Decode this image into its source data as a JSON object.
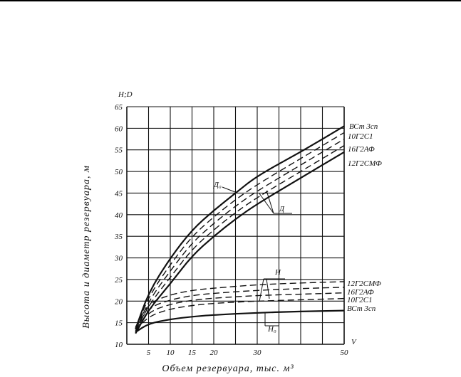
{
  "chart_data": {
    "type": "line",
    "ylabel_top": "H;D",
    "xlabel_end": "V",
    "xlabel": "Объем резервуара, тыс. м³",
    "ylabel": "Высота и диаметр резервуара, м",
    "x_ticks": [
      5,
      10,
      15,
      20,
      30,
      50
    ],
    "y_ticks": [
      10,
      15,
      20,
      25,
      30,
      35,
      40,
      45,
      50,
      55,
      60,
      65
    ],
    "xlim": [
      0,
      50
    ],
    "ylim": [
      10,
      65
    ],
    "grid": true,
    "annotations": {
      "D0": "Д₀",
      "D": "Д",
      "H": "H",
      "H0": "H₀"
    },
    "legend_upper": [
      "ВСт 3сп",
      "10Г2С1",
      "16Г2АФ",
      "12Г2СМФ"
    ],
    "legend_lower": [
      "12Г2СМФ",
      "16Г2АФ",
      "10Г2С1",
      "ВСт 3сп"
    ],
    "series": [
      {
        "name": "Д₀",
        "group": "diameter",
        "style": "solid",
        "x": [
          2,
          5,
          10,
          15,
          20,
          25,
          30,
          40,
          50
        ],
        "y": [
          13.5,
          22,
          30,
          36.5,
          41,
          45,
          49,
          54.5,
          60.5
        ]
      },
      {
        "name": "ВСт 3сп",
        "group": "diameter",
        "style": "dashed",
        "x": [
          2,
          5,
          10,
          15,
          20,
          25,
          30,
          40,
          50
        ],
        "y": [
          13.5,
          21,
          28.5,
          35,
          39.5,
          43.5,
          47,
          53,
          59
        ]
      },
      {
        "name": "10Г2С1",
        "group": "diameter",
        "style": "dashed",
        "x": [
          2,
          5,
          10,
          15,
          20,
          25,
          30,
          40,
          50
        ],
        "y": [
          13,
          20,
          27,
          33.5,
          38,
          42,
          45.5,
          51.5,
          57.5
        ]
      },
      {
        "name": "16Г2АФ",
        "group": "diameter",
        "style": "dashed",
        "x": [
          2,
          5,
          10,
          15,
          20,
          25,
          30,
          40,
          50
        ],
        "y": [
          13,
          19,
          25.5,
          32,
          36.5,
          40.5,
          44,
          50,
          56
        ]
      },
      {
        "name": "12Г2СМФ",
        "group": "diameter",
        "style": "solid",
        "x": [
          2,
          5,
          10,
          15,
          20,
          25,
          30,
          40,
          50
        ],
        "y": [
          12.5,
          18,
          24,
          30.5,
          35,
          39,
          42.5,
          48.5,
          54.5
        ]
      },
      {
        "name": "12Г2СМФ",
        "group": "height",
        "style": "dashed",
        "x": [
          2,
          5,
          10,
          15,
          20,
          30,
          40,
          50
        ],
        "y": [
          14,
          19.5,
          21.5,
          22.5,
          23,
          23.8,
          24.2,
          24.5
        ]
      },
      {
        "name": "16Г2АФ",
        "group": "height",
        "style": "dashed",
        "x": [
          2,
          5,
          10,
          15,
          20,
          30,
          40,
          50
        ],
        "y": [
          13.8,
          18.5,
          20.3,
          21.3,
          21.8,
          22.5,
          22.9,
          23.2
        ]
      },
      {
        "name": "10Г2С1",
        "group": "height",
        "style": "dashed",
        "x": [
          2,
          5,
          10,
          15,
          20,
          30,
          40,
          50
        ],
        "y": [
          13.5,
          17.5,
          19.3,
          20.2,
          20.7,
          21.3,
          21.6,
          21.9
        ]
      },
      {
        "name": "ВСт 3сп",
        "group": "height",
        "style": "dashed",
        "x": [
          2,
          5,
          10,
          15,
          20,
          30,
          40,
          50
        ],
        "y": [
          13.2,
          16.5,
          18.2,
          19,
          19.5,
          20,
          20.3,
          20.6
        ]
      },
      {
        "name": "H₀",
        "group": "height",
        "style": "solid",
        "x": [
          2,
          5,
          10,
          15,
          20,
          30,
          40,
          50
        ],
        "y": [
          12.8,
          14.8,
          15.8,
          16.4,
          16.8,
          17.3,
          17.6,
          17.8
        ]
      }
    ]
  }
}
